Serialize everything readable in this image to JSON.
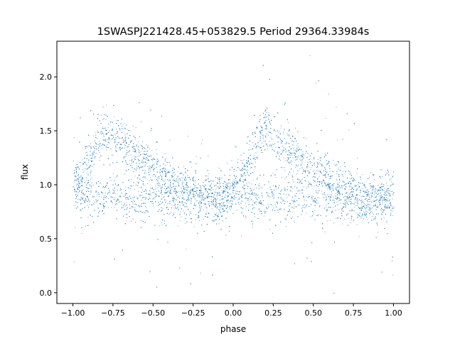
{
  "chart_data": {
    "type": "scatter",
    "title": "1SWASPJ221428.45+053829.5 Period 29364.33984s",
    "xlabel": "phase",
    "ylabel": "flux",
    "xlim": [
      -1.1,
      1.1
    ],
    "ylim": [
      -0.1,
      2.33
    ],
    "xticks": [
      -1.0,
      -0.75,
      -0.5,
      -0.25,
      0.0,
      0.25,
      0.5,
      0.75,
      1.0
    ],
    "xtick_labels": [
      "−1.00",
      "−0.75",
      "−0.50",
      "−0.25",
      "0.00",
      "0.25",
      "0.50",
      "0.75",
      "1.00"
    ],
    "yticks": [
      0.0,
      0.5,
      1.0,
      1.5,
      2.0
    ],
    "ytick_labels": [
      "0.0",
      "0.5",
      "1.0",
      "1.5",
      "2.0"
    ],
    "grid": false,
    "marker_color": "#1f77b4",
    "phase_bins": [
      -1.0,
      -0.9,
      -0.8,
      -0.7,
      -0.6,
      -0.5,
      -0.4,
      -0.3,
      -0.2,
      -0.1,
      0.0,
      0.1,
      0.2,
      0.3,
      0.4,
      0.5,
      0.6,
      0.7,
      0.8,
      0.9,
      1.0
    ],
    "series": [
      {
        "values": [
          1.0,
          1.2,
          1.5,
          1.4,
          1.25,
          1.15,
          1.05,
          0.95,
          0.88,
          0.85,
          0.95,
          1.2,
          1.5,
          1.4,
          1.25,
          1.15,
          1.05,
          0.95,
          0.9,
          0.88,
          0.9
        ]
      },
      {
        "values": [
          0.95,
          0.9,
          0.88,
          0.88,
          0.88,
          0.88,
          0.88,
          0.88,
          0.88,
          0.88,
          0.95,
          0.9,
          0.88,
          0.88,
          0.88,
          0.88,
          0.88,
          0.88,
          0.88,
          0.88,
          0.9
        ]
      }
    ]
  }
}
